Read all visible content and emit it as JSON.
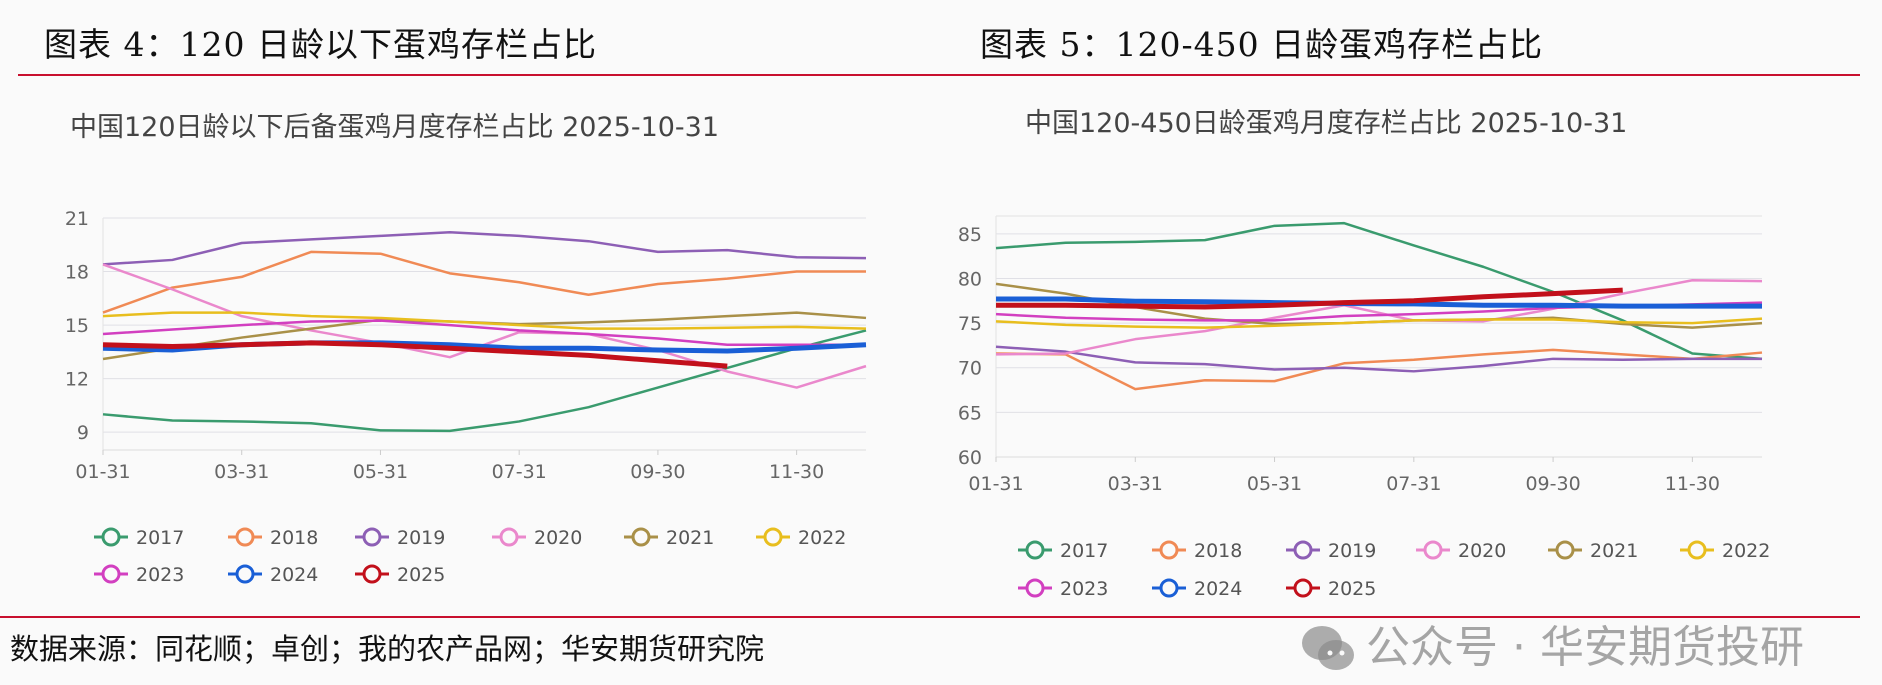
{
  "figures": [
    {
      "title": "图表 4：120 日龄以下蛋鸡存栏占比"
    },
    {
      "title": "图表 5：120-450 日龄蛋鸡存栏占比"
    }
  ],
  "source": "数据来源：同花顺；卓创；我的农产品网；华安期货研究院",
  "watermark": "公众号 · 华安期货投研",
  "colors": {
    "rule": "#c8102e",
    "2017": "#3a9b6e",
    "2018": "#f08a55",
    "2019": "#8d5fb5",
    "2020": "#ea88cc",
    "2021": "#a99048",
    "2022": "#e8be1e",
    "2023": "#d23fc0",
    "2024": "#1a5fd6",
    "2025": "#c2101b"
  },
  "chart_data": [
    {
      "type": "line",
      "title": "中国120日龄以下后备蛋鸡月度存栏占比 2025-10-31",
      "x_tick_labels": [
        "01-31",
        "03-31",
        "05-31",
        "07-31",
        "09-30",
        "11-30"
      ],
      "y_ticks": [
        9,
        12,
        15,
        18,
        21
      ],
      "ylim": [
        8,
        21
      ],
      "grid": true,
      "legend": "bottom",
      "series": [
        {
          "name": "2017",
          "values": [
            10.0,
            9.65,
            9.6,
            9.5,
            9.1,
            9.07,
            9.6,
            10.4,
            11.5,
            12.6,
            13.7,
            14.7
          ]
        },
        {
          "name": "2018",
          "values": [
            15.7,
            17.1,
            17.7,
            19.1,
            19.0,
            17.9,
            17.4,
            16.7,
            17.3,
            17.6,
            18.0,
            18.0
          ]
        },
        {
          "name": "2019",
          "values": [
            18.4,
            18.65,
            19.6,
            19.8,
            20.0,
            20.2,
            20.0,
            19.7,
            19.1,
            19.2,
            18.8,
            18.75
          ]
        },
        {
          "name": "2020",
          "values": [
            18.4,
            17.0,
            15.5,
            14.7,
            14.0,
            13.2,
            14.6,
            14.5,
            13.6,
            12.4,
            11.5,
            12.7
          ]
        },
        {
          "name": "2021",
          "values": [
            13.1,
            13.7,
            14.3,
            14.8,
            15.3,
            15.2,
            15.05,
            15.15,
            15.3,
            15.5,
            15.7,
            15.4
          ]
        },
        {
          "name": "2022",
          "values": [
            15.5,
            15.7,
            15.7,
            15.5,
            15.4,
            15.2,
            15.0,
            14.8,
            14.8,
            14.85,
            14.9,
            14.8
          ]
        },
        {
          "name": "2023",
          "values": [
            14.5,
            14.75,
            15.0,
            15.2,
            15.25,
            15.0,
            14.7,
            14.5,
            14.25,
            13.9,
            13.9,
            13.9
          ]
        },
        {
          "name": "2024",
          "values": [
            13.7,
            13.6,
            13.9,
            14.0,
            14.0,
            13.9,
            13.7,
            13.7,
            13.6,
            13.55,
            13.7,
            13.9
          ]
        },
        {
          "name": "2025",
          "values": [
            13.9,
            13.8,
            13.9,
            14.0,
            13.9,
            13.7,
            13.5,
            13.3,
            13.0,
            12.7
          ]
        }
      ]
    },
    {
      "type": "line",
      "title": "中国120-450日龄蛋鸡月度存栏占比 2025-10-31",
      "x_tick_labels": [
        "01-31",
        "03-31",
        "05-31",
        "07-31",
        "09-30",
        "11-30"
      ],
      "y_ticks": [
        60,
        65,
        70,
        75,
        80,
        85
      ],
      "ylim": [
        60,
        87
      ],
      "grid": true,
      "legend": "bottom",
      "series": [
        {
          "name": "2017",
          "values": [
            83.4,
            84.0,
            84.1,
            84.3,
            85.9,
            86.2,
            83.7,
            81.3,
            78.5,
            75.3,
            71.6,
            71.0
          ]
        },
        {
          "name": "2018",
          "values": [
            71.6,
            71.5,
            67.6,
            68.6,
            68.5,
            70.5,
            70.9,
            71.5,
            72.0,
            71.5,
            71.0,
            71.7
          ]
        },
        {
          "name": "2019",
          "values": [
            72.35,
            71.8,
            70.6,
            70.4,
            69.8,
            70.0,
            69.6,
            70.2,
            71.0,
            70.9,
            71.0,
            71.0
          ]
        },
        {
          "name": "2020",
          "values": [
            71.5,
            71.6,
            73.2,
            74.1,
            75.6,
            77.0,
            75.3,
            75.2,
            76.6,
            78.3,
            79.8,
            79.7
          ]
        },
        {
          "name": "2021",
          "values": [
            79.4,
            78.3,
            76.8,
            75.5,
            74.9,
            75.0,
            75.3,
            75.4,
            75.6,
            74.9,
            74.5,
            75.0
          ]
        },
        {
          "name": "2022",
          "values": [
            75.2,
            74.8,
            74.6,
            74.5,
            74.7,
            75.0,
            75.3,
            75.4,
            75.4,
            75.1,
            75.0,
            75.5
          ]
        },
        {
          "name": "2023",
          "values": [
            76.0,
            75.6,
            75.4,
            75.3,
            75.3,
            75.8,
            76.0,
            76.3,
            76.7,
            76.9,
            77.1,
            77.3
          ]
        },
        {
          "name": "2024",
          "values": [
            77.7,
            77.7,
            77.45,
            77.4,
            77.3,
            77.2,
            77.15,
            77.0,
            77.0,
            76.9,
            76.9,
            76.9
          ]
        },
        {
          "name": "2025",
          "values": [
            77.0,
            77.0,
            76.9,
            76.8,
            77.0,
            77.3,
            77.5,
            77.95,
            78.3,
            78.7
          ]
        }
      ]
    }
  ]
}
